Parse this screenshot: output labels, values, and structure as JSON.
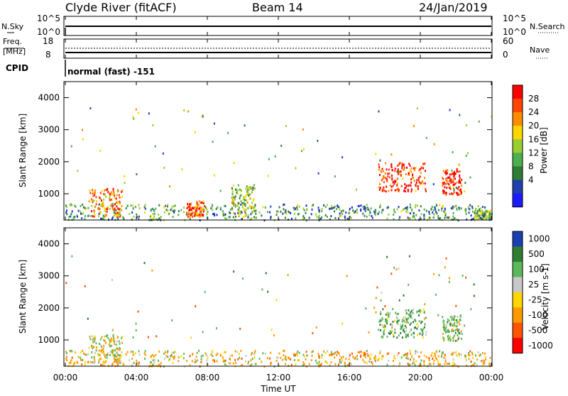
{
  "header": {
    "station": "Clyde River (fitACF)",
    "beam": "Beam 14",
    "date": "24/Jan/2019"
  },
  "noise_panel": {
    "left_label": "N.Sky",
    "right_label": "N.Search",
    "left_ticks": [
      "10^5",
      "10^0"
    ],
    "right_ticks": [
      "10^5",
      "10^0"
    ]
  },
  "freq_panel": {
    "left_label_1": "Freq.",
    "left_label_2": "[MHz]",
    "right_label": "Nave",
    "left_ticks": [
      "18",
      "8"
    ],
    "right_ticks": [
      "60",
      "0"
    ]
  },
  "cpid": {
    "label": "CPID",
    "text": "normal (fast) -151"
  },
  "power_panel": {
    "ylabel": "Slant Range [km]",
    "yticks": [
      "4000",
      "3000",
      "2000",
      "1000"
    ],
    "colorbar_label": "Power [dB]",
    "colorbar_ticks": [
      "28",
      "24",
      "20",
      "16",
      "12",
      "8",
      "4"
    ],
    "colors": [
      "#1a1aff",
      "#2040b0",
      "#2e7d32",
      "#4caf50",
      "#9acd32",
      "#ffd700",
      "#ff8c00",
      "#ff4500",
      "#ff0000"
    ]
  },
  "velocity_panel": {
    "ylabel": "Slant Range [km]",
    "yticks": [
      "4000",
      "3000",
      "2000",
      "1000"
    ],
    "colorbar_label": "Velocity [m s-1]",
    "colorbar_ticks": [
      "1000",
      "500",
      "100",
      "25",
      "-25",
      "-100",
      "-500",
      "-1000"
    ],
    "colors": [
      "#1a3fb0",
      "#2e7d32",
      "#5cb85c",
      "#c8c8c8",
      "#ffd700",
      "#ff9900",
      "#ff5500",
      "#ff0000"
    ]
  },
  "xaxis": {
    "label": "Time UT",
    "ticks": [
      "00:00",
      "04:00",
      "08:00",
      "12:00",
      "16:00",
      "20:00",
      "00:00"
    ]
  },
  "chart_data": [
    {
      "type": "heatmap",
      "title": "Clyde River (fitACF)",
      "subtitle": "Beam 14 24/Jan/2019",
      "xlabel": "Time UT",
      "ylabel": "Slant Range [km]",
      "colorbar_label": "Power [dB]",
      "xlim": [
        "00:00",
        "00:00"
      ],
      "ylim": [
        180,
        4500
      ],
      "x_ticks": [
        "00:00",
        "04:00",
        "08:00",
        "12:00",
        "16:00",
        "20:00",
        "00:00"
      ],
      "y_ticks": [
        1000,
        2000,
        3000,
        4000
      ],
      "colorbar_ticks": [
        4,
        8,
        12,
        16,
        20,
        24,
        28
      ],
      "scatter_regions": [
        {
          "t_start_h": 0.0,
          "t_end_h": 24.0,
          "r_min": 200,
          "r_max": 700,
          "power_db": 10
        },
        {
          "t_start_h": 1.3,
          "t_end_h": 3.2,
          "r_min": 300,
          "r_max": 1200,
          "power_db": 22
        },
        {
          "t_start_h": 6.8,
          "t_end_h": 7.8,
          "r_min": 300,
          "r_max": 800,
          "power_db": 24
        },
        {
          "t_start_h": 9.3,
          "t_end_h": 10.7,
          "r_min": 300,
          "r_max": 1300,
          "power_db": 14
        },
        {
          "t_start_h": 17.6,
          "t_end_h": 20.3,
          "r_min": 1100,
          "r_max": 2000,
          "power_db": 26
        },
        {
          "t_start_h": 21.2,
          "t_end_h": 22.3,
          "r_min": 1000,
          "r_max": 1800,
          "power_db": 28
        },
        {
          "t_start_h": 23.0,
          "t_end_h": 24.0,
          "r_min": 250,
          "r_max": 500,
          "power_db": 12
        }
      ]
    },
    {
      "type": "heatmap",
      "title": "Clyde River (fitACF)",
      "xlabel": "Time UT",
      "ylabel": "Slant Range [km]",
      "colorbar_label": "Velocity [m s-1]",
      "ylim": [
        180,
        4500
      ],
      "x_ticks": [
        "00:00",
        "04:00",
        "08:00",
        "12:00",
        "16:00",
        "20:00",
        "00:00"
      ],
      "y_ticks": [
        1000,
        2000,
        3000,
        4000
      ],
      "colorbar_ticks": [
        1000,
        500,
        100,
        25,
        -25,
        -100,
        -500,
        -1000
      ],
      "scatter_regions": [
        {
          "t_start_h": 0.0,
          "t_end_h": 24.0,
          "r_min": 200,
          "r_max": 700,
          "velocity": -100
        },
        {
          "t_start_h": 1.3,
          "t_end_h": 3.2,
          "r_min": 300,
          "r_max": 1200,
          "velocity": 0
        },
        {
          "t_start_h": 17.6,
          "t_end_h": 20.3,
          "r_min": 1100,
          "r_max": 2000,
          "velocity": 200
        },
        {
          "t_start_h": 21.2,
          "t_end_h": 22.3,
          "r_min": 1000,
          "r_max": 1800,
          "velocity": 150
        }
      ]
    }
  ]
}
